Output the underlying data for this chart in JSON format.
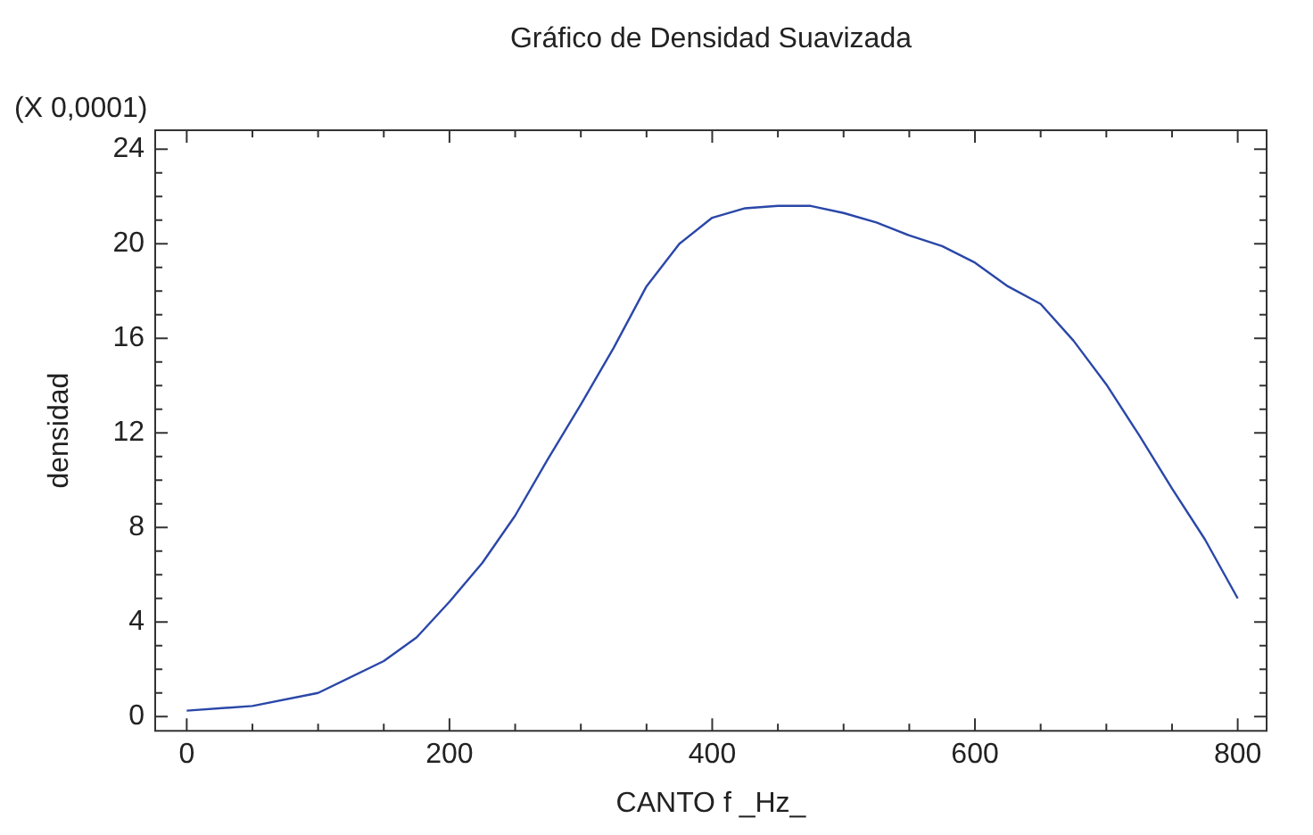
{
  "chart_data": {
    "type": "line",
    "title": "Gráfico de Densidad Suavizada",
    "xlabel": "CANTO f _Hz_",
    "ylabel": "densidad",
    "annotations": [
      "(X 0,0001)"
    ],
    "x": [
      0,
      50,
      100,
      150,
      175,
      200,
      225,
      250,
      275,
      300,
      325,
      350,
      375,
      400,
      425,
      450,
      475,
      500,
      525,
      550,
      575,
      600,
      625,
      650,
      675,
      700,
      725,
      750,
      775,
      800
    ],
    "series": [
      {
        "color": "#2a47a8",
        "values": [
          0.25,
          0.45,
          1.0,
          2.35,
          3.35,
          4.86,
          6.5,
          8.5,
          10.9,
          13.2,
          15.6,
          18.2,
          20.0,
          21.1,
          21.5,
          21.6,
          21.6,
          21.3,
          20.9,
          20.35,
          19.9,
          19.2,
          18.2,
          17.45,
          15.9,
          14.05,
          11.9,
          9.65,
          7.5,
          5.0
        ]
      }
    ],
    "xlim": [
      -24,
      822
    ],
    "ylim": [
      -0.6,
      24.8
    ],
    "xticks": [
      0,
      {
        "value": 50,
        "label": null
      },
      {
        "value": 100,
        "label": null
      },
      {
        "value": 150,
        "label": null
      },
      200,
      {
        "value": 250,
        "label": null
      },
      {
        "value": 300,
        "label": null
      },
      {
        "value": 350,
        "label": null
      },
      400,
      {
        "value": 450,
        "label": null
      },
      {
        "value": 500,
        "label": null
      },
      {
        "value": 550,
        "label": null
      },
      600,
      {
        "value": 650,
        "label": null
      },
      {
        "value": 700,
        "label": null
      },
      {
        "value": 750,
        "label": null
      },
      800
    ],
    "yticks": [
      0,
      {
        "value": 1,
        "label": null
      },
      {
        "value": 2,
        "label": null
      },
      {
        "value": 3,
        "label": null
      },
      4,
      {
        "value": 5,
        "label": null
      },
      {
        "value": 6,
        "label": null
      },
      {
        "value": 7,
        "label": null
      },
      8,
      {
        "value": 9,
        "label": null
      },
      {
        "value": 10,
        "label": null
      },
      {
        "value": 11,
        "label": null
      },
      12,
      {
        "value": 13,
        "label": null
      },
      {
        "value": 14,
        "label": null
      },
      {
        "value": 15,
        "label": null
      },
      16,
      {
        "value": 17,
        "label": null
      },
      {
        "value": 18,
        "label": null
      },
      {
        "value": 19,
        "label": null
      },
      20,
      {
        "value": 21,
        "label": null
      },
      {
        "value": 22,
        "label": null
      },
      {
        "value": 23,
        "label": null
      },
      24
    ],
    "grid": false,
    "legend": false,
    "marker": "none",
    "line_style": "solid"
  }
}
